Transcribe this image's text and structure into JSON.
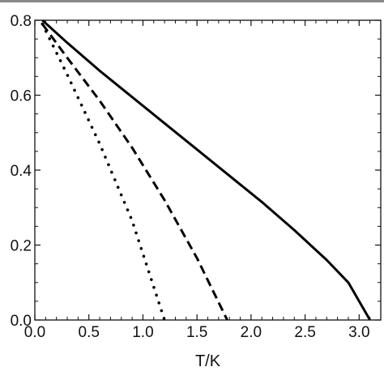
{
  "chart_data": {
    "type": "line",
    "title": "",
    "xlabel": "T/K",
    "ylabel": "",
    "xlim": [
      0.0,
      3.2
    ],
    "ylim": [
      0.0,
      0.8
    ],
    "xticks": [
      "0.0",
      "0.5",
      "1.0",
      "1.5",
      "2.0",
      "2.5",
      "3.0"
    ],
    "yticks": [
      "0.0",
      "0.2",
      "0.4",
      "0.6",
      "0.8"
    ],
    "grid": false,
    "legend": "none",
    "series": [
      {
        "style": "solid",
        "color": "#000000",
        "x": [
          0.07,
          0.3,
          0.6,
          0.9,
          1.2,
          1.5,
          1.8,
          2.1,
          2.4,
          2.7,
          2.9,
          3.1
        ],
        "y": [
          0.8,
          0.74,
          0.665,
          0.595,
          0.525,
          0.455,
          0.385,
          0.315,
          0.24,
          0.16,
          0.1,
          0.0
        ]
      },
      {
        "style": "dashed",
        "color": "#000000",
        "x": [
          0.07,
          0.3,
          0.6,
          0.9,
          1.2,
          1.5,
          1.78
        ],
        "y": [
          0.79,
          0.7,
          0.585,
          0.46,
          0.32,
          0.165,
          0.0
        ]
      },
      {
        "style": "dotted",
        "color": "#000000",
        "x": [
          0.07,
          0.3,
          0.6,
          0.9,
          1.2
        ],
        "y": [
          0.79,
          0.655,
          0.47,
          0.265,
          0.0
        ]
      }
    ]
  }
}
